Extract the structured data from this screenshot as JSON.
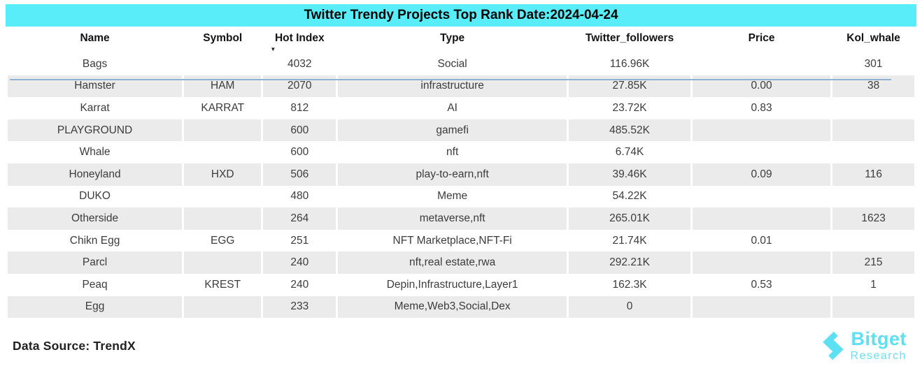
{
  "colors": {
    "title_bar": "#58EDF8",
    "stripe": "#EBEBEB",
    "header_line": "#8CB3D3",
    "cell_text": "#3C3C3C",
    "header_text": "#141414",
    "footer_text": "#212121",
    "logo": "#5EE0F3"
  },
  "chart_data": {
    "type": "table",
    "title": "Twitter Trendy Projects Top Rank Date:2024-04-24",
    "columns": [
      {
        "key": "name",
        "label": "Name"
      },
      {
        "key": "symbol",
        "label": "Symbol"
      },
      {
        "key": "hot_index",
        "label": "Hot Index"
      },
      {
        "key": "type",
        "label": "Type"
      },
      {
        "key": "twitter_followers",
        "label": "Twitter_followers"
      },
      {
        "key": "price",
        "label": "Price"
      },
      {
        "key": "kol_whale",
        "label": "Kol_whale"
      }
    ],
    "sort": {
      "column": "hot_index",
      "direction": "desc",
      "icon": "▼"
    },
    "rows": [
      {
        "name": "Bags",
        "symbol": "",
        "hot_index": "4032",
        "type": "Social",
        "twitter_followers": "116.96K",
        "price": "",
        "kol_whale": "301"
      },
      {
        "name": "Hamster",
        "symbol": "HAM",
        "hot_index": "2070",
        "type": "infrastructure",
        "twitter_followers": "27.85K",
        "price": "0.00",
        "kol_whale": "38"
      },
      {
        "name": "Karrat",
        "symbol": "KARRAT",
        "hot_index": "812",
        "type": "AI",
        "twitter_followers": "23.72K",
        "price": "0.83",
        "kol_whale": ""
      },
      {
        "name": "PLAYGROUND",
        "symbol": "",
        "hot_index": "600",
        "type": "gamefi",
        "twitter_followers": "485.52K",
        "price": "",
        "kol_whale": ""
      },
      {
        "name": "Whale",
        "symbol": "",
        "hot_index": "600",
        "type": "nft",
        "twitter_followers": "6.74K",
        "price": "",
        "kol_whale": ""
      },
      {
        "name": "Honeyland",
        "symbol": "HXD",
        "hot_index": "506",
        "type": "play-to-earn,nft",
        "twitter_followers": "39.46K",
        "price": "0.09",
        "kol_whale": "116"
      },
      {
        "name": "DUKO",
        "symbol": "",
        "hot_index": "480",
        "type": "Meme",
        "twitter_followers": "54.22K",
        "price": "",
        "kol_whale": ""
      },
      {
        "name": "Otherside",
        "symbol": "",
        "hot_index": "264",
        "type": "metaverse,nft",
        "twitter_followers": "265.01K",
        "price": "",
        "kol_whale": "1623"
      },
      {
        "name": "Chikn Egg",
        "symbol": "EGG",
        "hot_index": "251",
        "type": "NFT Marketplace,NFT-Fi",
        "twitter_followers": "21.74K",
        "price": "0.01",
        "kol_whale": ""
      },
      {
        "name": "Parcl",
        "symbol": "",
        "hot_index": "240",
        "type": "nft,real estate,rwa",
        "twitter_followers": "292.21K",
        "price": "",
        "kol_whale": "215"
      },
      {
        "name": "Peaq",
        "symbol": "KREST",
        "hot_index": "240",
        "type": "Depin,Infrastructure,Layer1",
        "twitter_followers": "162.3K",
        "price": "0.53",
        "kol_whale": "1"
      },
      {
        "name": "Egg",
        "symbol": "",
        "hot_index": "233",
        "type": "Meme,Web3,Social,Dex",
        "twitter_followers": "0",
        "price": "",
        "kol_whale": ""
      }
    ]
  },
  "footer": {
    "data_source": "Data Source: TrendX"
  },
  "logo": {
    "brand": "Bitget",
    "sub": "Research"
  }
}
